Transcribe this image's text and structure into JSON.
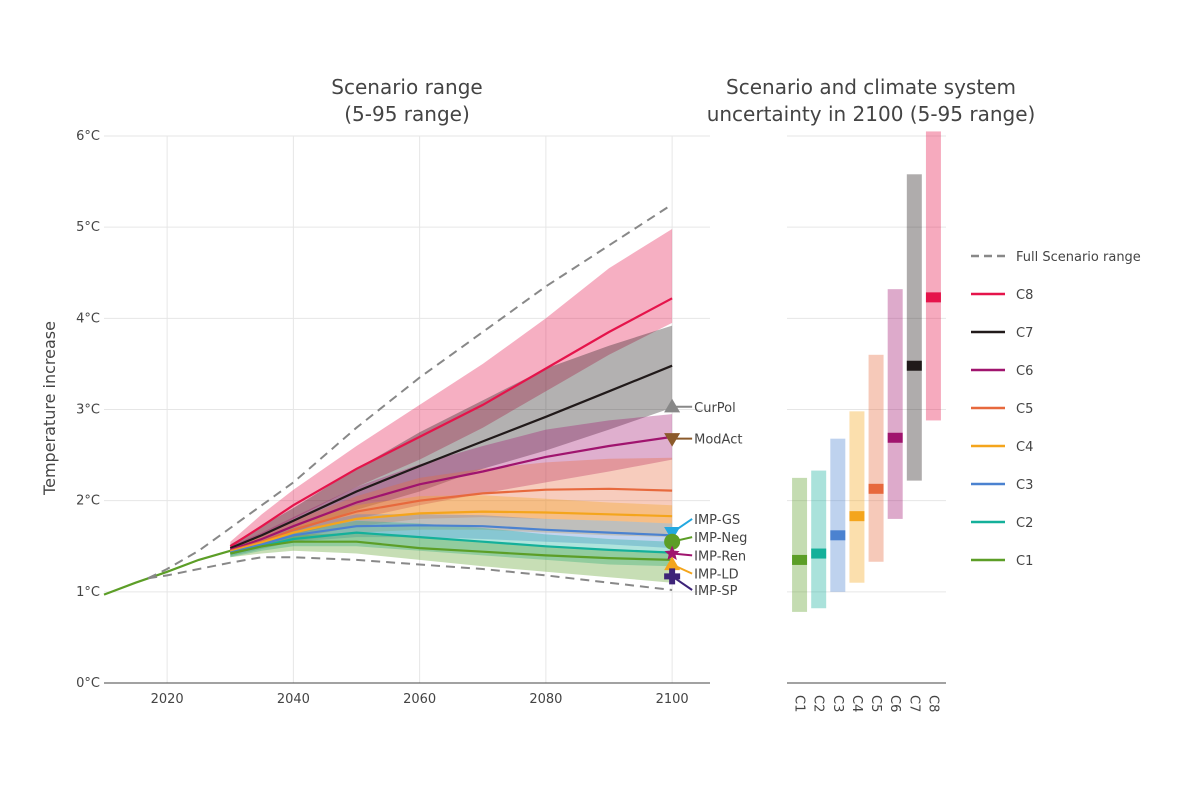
{
  "chart_data": [
    {
      "type": "line",
      "title": "Scenario range",
      "subtitle": "(5-95 range)",
      "ylabel": "Temperature increase",
      "xlim": [
        2010,
        2106
      ],
      "ylim": [
        0,
        6
      ],
      "x_ticks": [
        2020,
        2040,
        2060,
        2080,
        2100
      ],
      "x_tick_labels": [
        "2020",
        "2040",
        "2060",
        "2080",
        "2100"
      ],
      "y_ticks": [
        0,
        1,
        2,
        3,
        4,
        5,
        6
      ],
      "y_tick_labels": [
        "0°C",
        "1°C",
        "2°C",
        "3°C",
        "4°C",
        "5°C",
        "6°C"
      ],
      "grid": true,
      "common_start": {
        "x": [
          2010,
          2015,
          2020,
          2025,
          2030
        ],
        "y": [
          0.97,
          1.1,
          1.22,
          1.35,
          1.45
        ]
      },
      "full_range": {
        "name": "Full Scenario range",
        "color": "#888888",
        "x": [
          2017,
          2020,
          2025,
          2030,
          2035,
          2040,
          2050,
          2060,
          2070,
          2080,
          2090,
          2100
        ],
        "upper": [
          1.15,
          1.25,
          1.45,
          1.7,
          1.95,
          2.2,
          2.8,
          3.35,
          3.85,
          4.35,
          4.8,
          5.25
        ],
        "lower": [
          1.15,
          1.18,
          1.25,
          1.32,
          1.38,
          1.38,
          1.35,
          1.3,
          1.25,
          1.18,
          1.1,
          1.02
        ]
      },
      "series": [
        {
          "name": "C8",
          "color": "#e5144b",
          "x": [
            2030,
            2035,
            2040,
            2050,
            2060,
            2070,
            2080,
            2090,
            2100
          ],
          "values": [
            1.5,
            1.72,
            1.95,
            2.35,
            2.7,
            3.05,
            3.45,
            3.85,
            4.22
          ],
          "upper": [
            1.55,
            1.85,
            2.12,
            2.6,
            3.05,
            3.5,
            4.0,
            4.55,
            4.98
          ],
          "lower": [
            1.45,
            1.62,
            1.8,
            2.15,
            2.45,
            2.8,
            3.2,
            3.6,
            3.95
          ]
        },
        {
          "name": "C7",
          "color": "#211a1a",
          "x": [
            2030,
            2035,
            2040,
            2050,
            2060,
            2070,
            2080,
            2090,
            2100
          ],
          "values": [
            1.48,
            1.62,
            1.78,
            2.1,
            2.38,
            2.65,
            2.92,
            3.2,
            3.48
          ],
          "upper": [
            1.52,
            1.72,
            1.92,
            2.35,
            2.75,
            3.1,
            3.45,
            3.7,
            3.92
          ],
          "lower": [
            1.44,
            1.55,
            1.65,
            1.9,
            2.1,
            2.35,
            2.55,
            2.78,
            3.02
          ]
        },
        {
          "name": "C6",
          "color": "#a0146e",
          "x": [
            2030,
            2035,
            2040,
            2050,
            2060,
            2070,
            2080,
            2090,
            2100
          ],
          "values": [
            1.46,
            1.58,
            1.72,
            1.98,
            2.18,
            2.32,
            2.48,
            2.6,
            2.7
          ],
          "upper": [
            1.5,
            1.65,
            1.82,
            2.15,
            2.4,
            2.6,
            2.78,
            2.88,
            2.95
          ],
          "lower": [
            1.42,
            1.52,
            1.62,
            1.8,
            1.95,
            2.08,
            2.2,
            2.32,
            2.45
          ]
        },
        {
          "name": "C5",
          "color": "#e7693d",
          "x": [
            2030,
            2035,
            2040,
            2050,
            2060,
            2070,
            2080,
            2090,
            2100
          ],
          "values": [
            1.45,
            1.55,
            1.68,
            1.88,
            2.0,
            2.08,
            2.12,
            2.13,
            2.11
          ],
          "upper": [
            1.49,
            1.62,
            1.78,
            2.05,
            2.25,
            2.35,
            2.42,
            2.46,
            2.47
          ],
          "lower": [
            1.42,
            1.5,
            1.58,
            1.72,
            1.8,
            1.82,
            1.8,
            1.78,
            1.75
          ]
        },
        {
          "name": "C4",
          "color": "#f4a51c",
          "x": [
            2030,
            2035,
            2040,
            2050,
            2060,
            2070,
            2080,
            2090,
            2100
          ],
          "values": [
            1.44,
            1.54,
            1.65,
            1.8,
            1.86,
            1.88,
            1.87,
            1.85,
            1.83
          ],
          "upper": [
            1.48,
            1.6,
            1.73,
            1.95,
            2.05,
            2.06,
            2.02,
            1.98,
            1.95
          ],
          "lower": [
            1.41,
            1.48,
            1.55,
            1.65,
            1.68,
            1.68,
            1.65,
            1.62,
            1.6
          ]
        },
        {
          "name": "C3",
          "color": "#4b82d0",
          "x": [
            2030,
            2035,
            2040,
            2050,
            2060,
            2070,
            2080,
            2090,
            2100
          ],
          "values": [
            1.43,
            1.52,
            1.62,
            1.72,
            1.73,
            1.72,
            1.68,
            1.65,
            1.62
          ],
          "upper": [
            1.47,
            1.58,
            1.7,
            1.85,
            1.85,
            1.84,
            1.8,
            1.78,
            1.75
          ],
          "lower": [
            1.39,
            1.47,
            1.55,
            1.6,
            1.6,
            1.58,
            1.55,
            1.52,
            1.48
          ]
        },
        {
          "name": "C2",
          "color": "#14b09a",
          "x": [
            2030,
            2035,
            2040,
            2050,
            2060,
            2070,
            2080,
            2090,
            2100
          ],
          "values": [
            1.42,
            1.5,
            1.58,
            1.65,
            1.6,
            1.55,
            1.5,
            1.46,
            1.43
          ],
          "upper": [
            1.46,
            1.56,
            1.66,
            1.78,
            1.75,
            1.7,
            1.63,
            1.58,
            1.55
          ],
          "lower": [
            1.38,
            1.45,
            1.5,
            1.5,
            1.45,
            1.4,
            1.35,
            1.3,
            1.28
          ]
        },
        {
          "name": "C1",
          "color": "#5c9e27",
          "x": [
            2030,
            2035,
            2040,
            2050,
            2060,
            2070,
            2080,
            2090,
            2100
          ],
          "values": [
            1.42,
            1.5,
            1.55,
            1.55,
            1.48,
            1.44,
            1.4,
            1.37,
            1.35
          ],
          "upper": [
            1.46,
            1.55,
            1.62,
            1.65,
            1.6,
            1.55,
            1.5,
            1.46,
            1.42
          ],
          "lower": [
            1.38,
            1.42,
            1.45,
            1.42,
            1.35,
            1.28,
            1.22,
            1.16,
            1.1
          ]
        }
      ],
      "markers": [
        {
          "label": "CurPol",
          "shape": "triangle-up",
          "color": "#888888",
          "x": 2100,
          "y": 3.03,
          "label_y": 3.03
        },
        {
          "label": "ModAct",
          "shape": "triangle-down",
          "color": "#8b5a2b",
          "x": 2100,
          "y": 2.68,
          "label_y": 2.68
        },
        {
          "label": "IMP-GS",
          "shape": "triangle-down",
          "color": "#22a8e0",
          "x": 2100,
          "y": 1.65,
          "label_y": 1.8
        },
        {
          "label": "IMP-Neg",
          "shape": "circle",
          "color": "#5c9e27",
          "x": 2100,
          "y": 1.55,
          "label_y": 1.6
        },
        {
          "label": "IMP-Ren",
          "shape": "star",
          "color": "#a0146e",
          "x": 2100,
          "y": 1.42,
          "label_y": 1.4
        },
        {
          "label": "IMP-LD",
          "shape": "triangle-up",
          "color": "#f4a51c",
          "x": 2100,
          "y": 1.3,
          "label_y": 1.2
        },
        {
          "label": "IMP-SP",
          "shape": "cross",
          "color": "#3d2378",
          "x": 2100,
          "y": 1.17,
          "label_y": 1.02
        }
      ]
    },
    {
      "type": "bar",
      "title": "Scenario and climate system",
      "subtitle": "uncertainty in 2100 (5-95 range)",
      "categories": [
        "C1",
        "C2",
        "C3",
        "C4",
        "C5",
        "C6",
        "C7",
        "C8"
      ],
      "ylim": [
        0,
        6
      ],
      "grid": true,
      "ranges": [
        {
          "name": "C1",
          "color": "#5c9e27",
          "low": 0.78,
          "high": 2.25,
          "median": 1.35
        },
        {
          "name": "C2",
          "color": "#14b09a",
          "low": 0.82,
          "high": 2.33,
          "median": 1.42
        },
        {
          "name": "C3",
          "color": "#4b82d0",
          "low": 1.0,
          "high": 2.68,
          "median": 1.62
        },
        {
          "name": "C4",
          "color": "#f4a51c",
          "low": 1.1,
          "high": 2.98,
          "median": 1.83
        },
        {
          "name": "C5",
          "color": "#e7693d",
          "low": 1.33,
          "high": 3.6,
          "median": 2.13
        },
        {
          "name": "C6",
          "color": "#a0146e",
          "low": 1.8,
          "high": 4.32,
          "median": 2.69
        },
        {
          "name": "C7",
          "color": "#211a1a",
          "low": 2.22,
          "high": 5.58,
          "median": 3.48
        },
        {
          "name": "C8",
          "color": "#e5144b",
          "low": 2.88,
          "high": 6.05,
          "median": 4.23
        }
      ]
    }
  ],
  "legend": {
    "placement": "right",
    "items": [
      {
        "label": "Full Scenario range",
        "color": "#888888",
        "dashed": true
      },
      {
        "label": "C8",
        "color": "#e5144b",
        "dashed": false
      },
      {
        "label": "C7",
        "color": "#211a1a",
        "dashed": false
      },
      {
        "label": "C6",
        "color": "#a0146e",
        "dashed": false
      },
      {
        "label": "C5",
        "color": "#e7693d",
        "dashed": false
      },
      {
        "label": "C4",
        "color": "#f4a51c",
        "dashed": false
      },
      {
        "label": "C3",
        "color": "#4b82d0",
        "dashed": false
      },
      {
        "label": "C2",
        "color": "#14b09a",
        "dashed": false
      },
      {
        "label": "C1",
        "color": "#5c9e27",
        "dashed": false
      }
    ]
  }
}
